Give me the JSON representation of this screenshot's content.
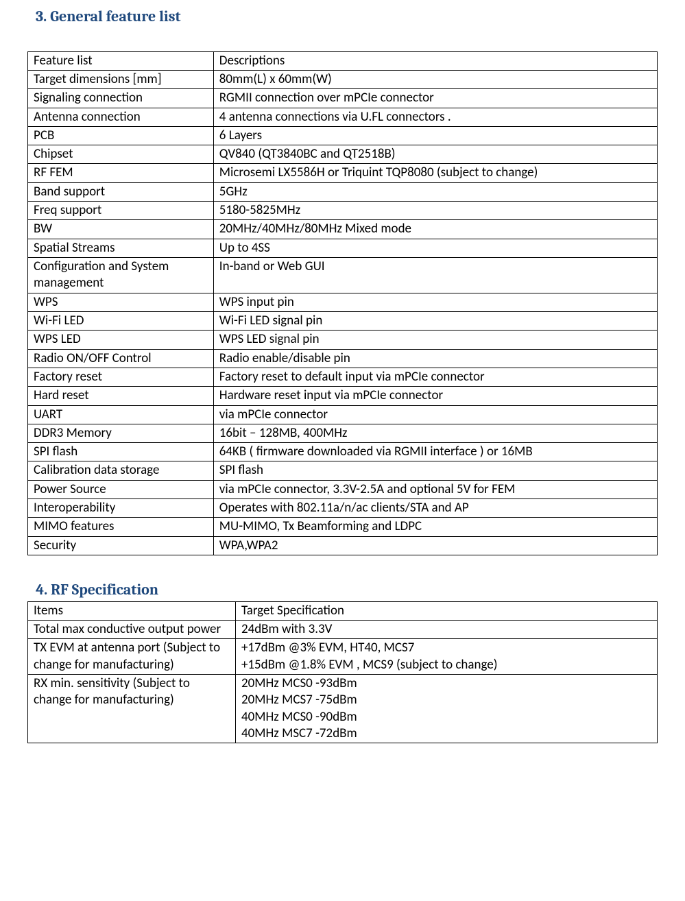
{
  "section3": {
    "heading": "3.  General feature list",
    "headingColor": "#1f497d",
    "table": {
      "col1_label": "Feature list",
      "col2_label": "Descriptions",
      "rows": [
        {
          "k": "Target dimensions [mm]",
          "v": "80mm(L) x 60mm(W)"
        },
        {
          "k": "Signaling connection",
          "v": "RGMII connection over mPCIe connector"
        },
        {
          "k": "Antenna connection",
          "v": "4 antenna connections via U.FL connectors ."
        },
        {
          "k": "PCB",
          "v": "6 Layers"
        },
        {
          "k": "Chipset",
          "v": "QV840 (QT3840BC and QT2518B)"
        },
        {
          "k": "RF FEM",
          "v": "Microsemi LX5586H or Triquint TQP8080 (subject to change)"
        },
        {
          "k": "Band support",
          "v": "5GHz"
        },
        {
          "k": "Freq support",
          "v": "5180-5825MHz"
        },
        {
          "k": "BW",
          "v": "20MHz/40MHz/80MHz Mixed mode"
        },
        {
          "k": "Spatial Streams",
          "v": "Up to 4SS"
        },
        {
          "k": "Configuration and System management",
          "v": "In-band or Web GUI"
        },
        {
          "k": "WPS",
          "v": "WPS input pin"
        },
        {
          "k": "Wi-Fi LED",
          "v": "Wi-Fi LED signal pin"
        },
        {
          "k": "WPS LED",
          "v": "WPS LED signal pin"
        },
        {
          "k": "Radio ON/OFF Control",
          "v": "Radio enable/disable pin"
        },
        {
          "k": "Factory reset",
          "v": "Factory reset to default input via mPCIe connector"
        },
        {
          "k": "Hard reset",
          "v": "Hardware reset input via mPCIe connector"
        },
        {
          "k": "UART",
          "v": "via mPCIe connector"
        },
        {
          "k": "DDR3 Memory",
          "v": "16bit – 128MB, 400MHz"
        },
        {
          "k": "SPI flash",
          "v": "64KB ( firmware downloaded via RGMII interface ) or 16MB"
        },
        {
          "k": "Calibration data storage",
          "v": "SPI flash"
        },
        {
          "k": "Power Source",
          "v": "via mPCIe connector, 3.3V-2.5A and optional 5V for FEM"
        },
        {
          "k": "Interoperability",
          "v": "Operates with 802.11a/n/ac clients/STA and AP"
        },
        {
          "k": "MIMO features",
          "v": "MU-MIMO, Tx Beamforming and LDPC"
        },
        {
          "k": "Security",
          "v": "WPA,WPA2"
        }
      ]
    }
  },
  "section4": {
    "heading": "4.  RF Specification",
    "headingColor": "#1f497d",
    "table": {
      "col1_label": "Items",
      "col2_label": "Target Specification",
      "rows": [
        {
          "k": "Total max conductive output power",
          "v": "24dBm with 3.3V"
        },
        {
          "k": "TX EVM at antenna port (Subject to change for manufacturing)",
          "v": "+17dBm @3% EVM, HT40, MCS7\n+15dBm @1.8% EVM , MCS9  (subject to change)"
        },
        {
          "k": "RX min. sensitivity (Subject to change for manufacturing)",
          "v": "20MHz MCS0  -93dBm\n20MHz MCS7 -75dBm\n40MHz MCS0 -90dBm\n40MHz MSC7 -72dBm"
        }
      ]
    }
  },
  "styling": {
    "bodyBackground": "#ffffff",
    "textColor": "#000000",
    "headingFontFamily": "Cambria, Georgia, serif",
    "bodyFontFamily": "Calibri, Segoe UI, Arial, sans-serif",
    "headingFontSize": 22,
    "cellFontSize": 19,
    "borderColor": "#000000"
  }
}
